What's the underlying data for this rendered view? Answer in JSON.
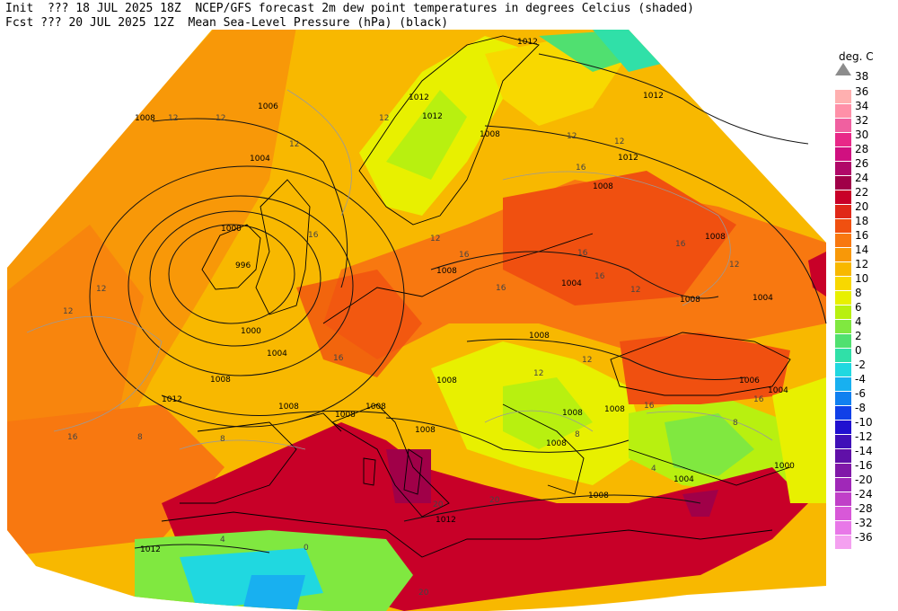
{
  "header": {
    "line1": "Init  ??? 18 JUL 2025 18Z  NCEP/GFS forecast 2m dew point temperatures in degrees Celcius (shaded)",
    "line2": "Fcst ??? 20 JUL 2025 12Z  Mean Sea-Level Pressure (hPa) (black)"
  },
  "legend": {
    "unit": "deg. C",
    "top_label": "38",
    "entries": [
      {
        "label": "36",
        "color": "#ffb0b0"
      },
      {
        "label": "34",
        "color": "#ff90a8"
      },
      {
        "label": "32",
        "color": "#f060a0"
      },
      {
        "label": "30",
        "color": "#e82888"
      },
      {
        "label": "28",
        "color": "#d01080"
      },
      {
        "label": "26",
        "color": "#b00868"
      },
      {
        "label": "24",
        "color": "#a00048"
      },
      {
        "label": "22",
        "color": "#c80028"
      },
      {
        "label": "20",
        "color": "#e02818"
      },
      {
        "label": "18",
        "color": "#f05010"
      },
      {
        "label": "16",
        "color": "#f87810"
      },
      {
        "label": "14",
        "color": "#f89808"
      },
      {
        "label": "12",
        "color": "#f8b800"
      },
      {
        "label": "10",
        "color": "#f8d800"
      },
      {
        "label": "8",
        "color": "#e8f000"
      },
      {
        "label": "6",
        "color": "#b8f010"
      },
      {
        "label": "4",
        "color": "#80e840"
      },
      {
        "label": "2",
        "color": "#50e070"
      },
      {
        "label": "0",
        "color": "#30e0a8"
      },
      {
        "label": "-2",
        "color": "#20d8e0"
      },
      {
        "label": "-4",
        "color": "#18b0f0"
      },
      {
        "label": "-6",
        "color": "#1080f0"
      },
      {
        "label": "-8",
        "color": "#1040e8"
      },
      {
        "label": "-10",
        "color": "#2010d0"
      },
      {
        "label": "-12",
        "color": "#4010b8"
      },
      {
        "label": "-14",
        "color": "#6010a8"
      },
      {
        "label": "-16",
        "color": "#8018a8"
      },
      {
        "label": "-20",
        "color": "#a028b8"
      },
      {
        "label": "-24",
        "color": "#c040c8"
      },
      {
        "label": "-28",
        "color": "#d858d8"
      },
      {
        "label": "-32",
        "color": "#e878e8"
      },
      {
        "label": "-36",
        "color": "#f4a0f0"
      }
    ]
  },
  "map": {
    "pressure_labels": [
      "1008",
      "1006",
      "1004",
      "1000",
      "996",
      "1000",
      "1004",
      "1008",
      "1012",
      "1012",
      "1012",
      "1012",
      "1012",
      "1012",
      "1008",
      "1008",
      "1004",
      "1008",
      "1004",
      "1008",
      "1008",
      "1008",
      "1008",
      "1008",
      "1008",
      "1008",
      "1008",
      "1008",
      "1008",
      "1008",
      "1004",
      "1004",
      "1006",
      "1000",
      "1008",
      "1012",
      "1012"
    ],
    "dewpoint_labels": [
      "12",
      "12",
      "12",
      "12",
      "12",
      "12",
      "16",
      "12",
      "16",
      "12",
      "16",
      "12",
      "16",
      "16",
      "12",
      "12",
      "16",
      "16",
      "12",
      "12",
      "16",
      "16",
      "8",
      "8",
      "8",
      "4",
      "4",
      "8",
      "16",
      "20",
      "20",
      "16",
      "20",
      "0"
    ]
  }
}
